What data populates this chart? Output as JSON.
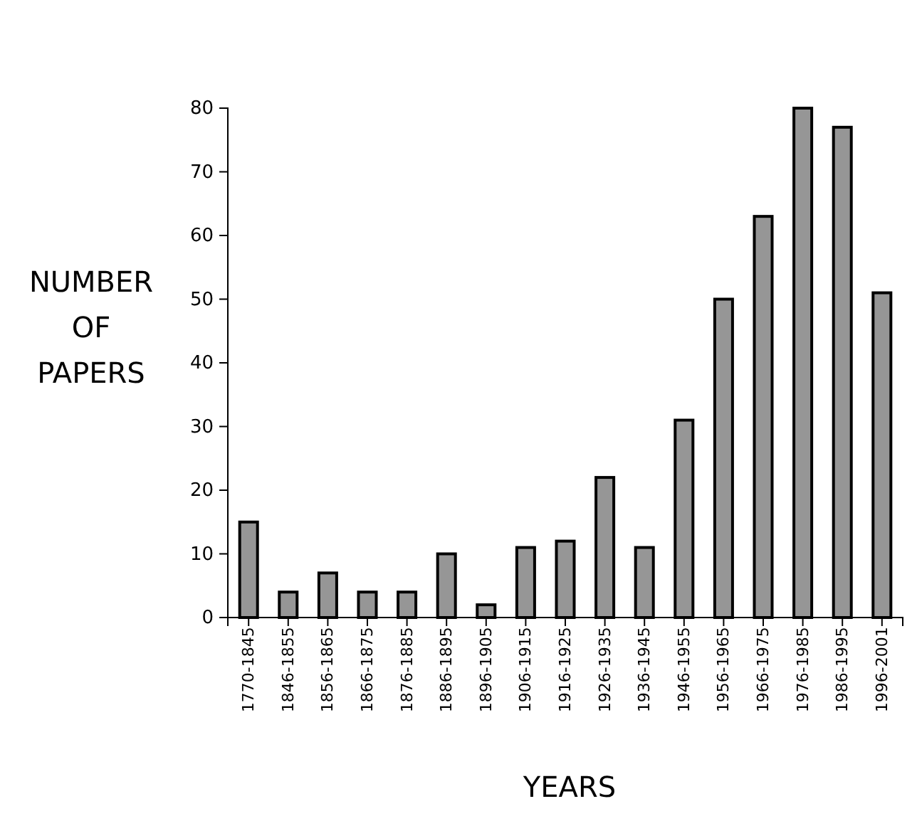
{
  "chart_data": {
    "type": "bar",
    "xlabel": "YEARS",
    "ylabel": "NUMBER OF PAPERS",
    "categories": [
      "1770-1845",
      "1846-1855",
      "1856-1865",
      "1866-1875",
      "1876-1885",
      "1886-1895",
      "1896-1905",
      "1906-1915",
      "1916-1925",
      "1926-1935",
      "1936-1945",
      "1946-1955",
      "1956-1965",
      "1966-1975",
      "1976-1985",
      "1986-1995",
      "1996-2001"
    ],
    "values": [
      15,
      4,
      7,
      4,
      4,
      10,
      2,
      11,
      12,
      22,
      11,
      31,
      50,
      63,
      80,
      77,
      51
    ],
    "color": "#969696",
    "ylim": [
      0,
      80
    ],
    "yticks": [
      0,
      10,
      20,
      30,
      40,
      50,
      60,
      70,
      80
    ],
    "grid": false
  }
}
